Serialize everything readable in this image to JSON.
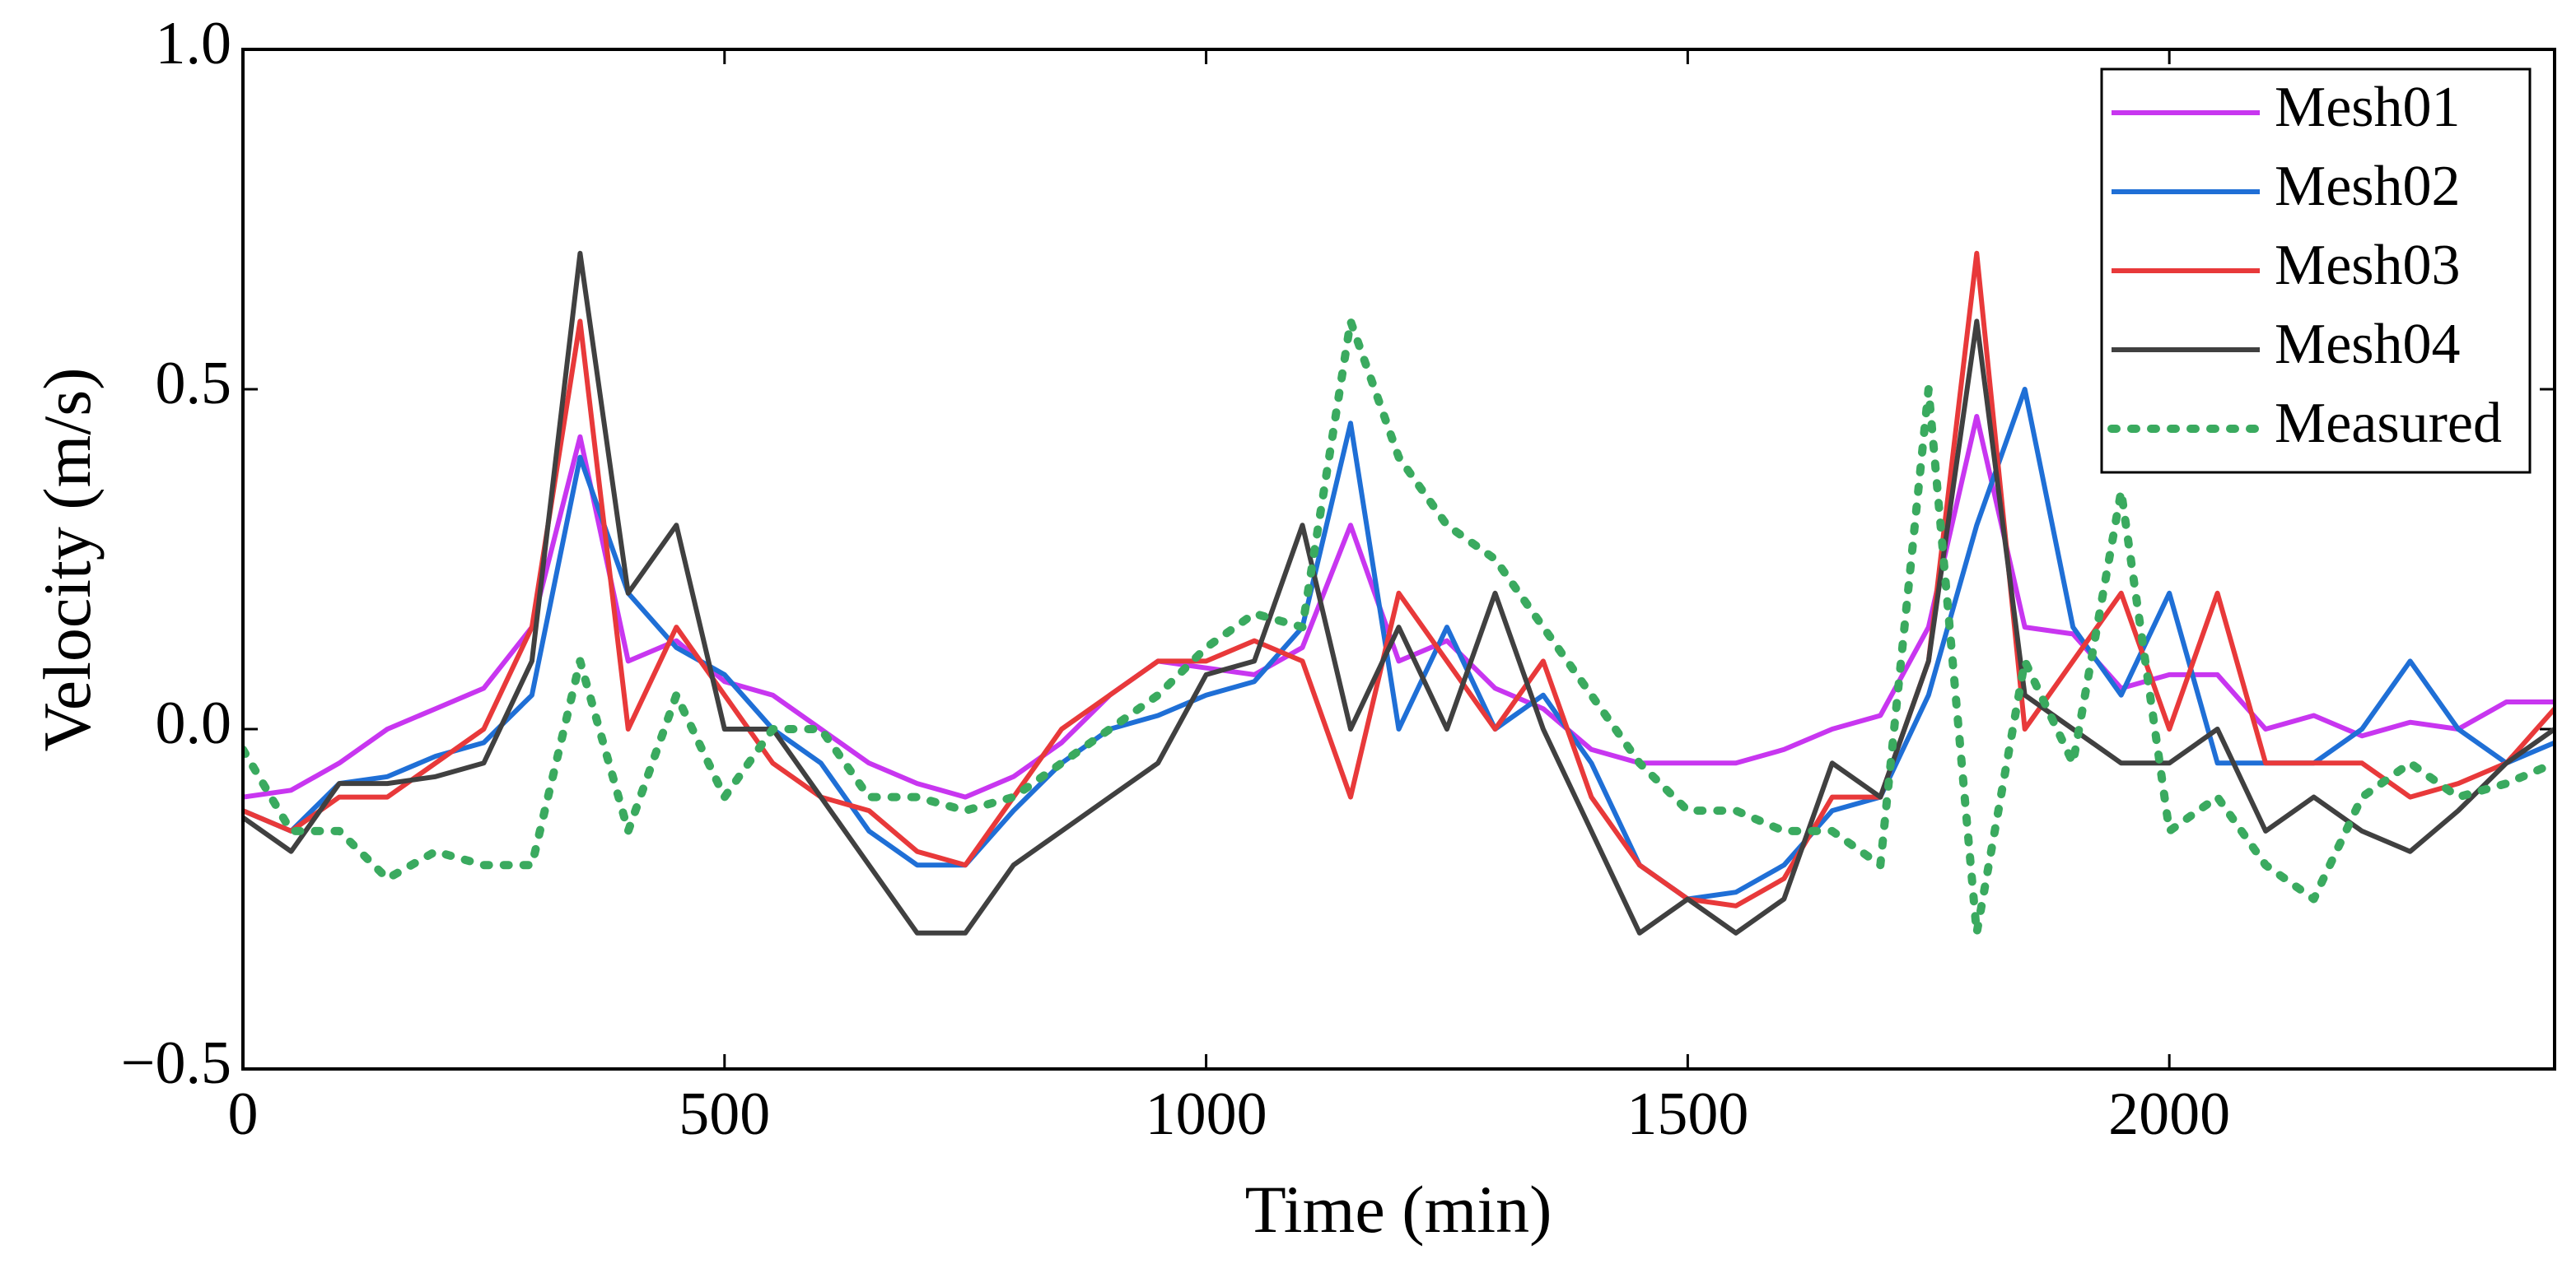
{
  "chart_data": {
    "type": "line",
    "xlabel": "Time (min)",
    "ylabel": "Velocity (m/s)",
    "xlim": [
      0,
      2400
    ],
    "ylim": [
      -0.5,
      1.0
    ],
    "xticks": [
      0,
      500,
      1000,
      1500,
      2000
    ],
    "yticks": [
      {
        "value": -0.5,
        "label": "−0.5"
      },
      {
        "value": 0,
        "label": "0.0"
      },
      {
        "value": 0.5,
        "label": "0.5"
      },
      {
        "value": 1.0,
        "label": "1.0"
      }
    ],
    "legend": "upper right",
    "x": [
      0,
      50,
      100,
      150,
      200,
      250,
      300,
      350,
      400,
      450,
      500,
      550,
      600,
      650,
      700,
      750,
      800,
      850,
      900,
      950,
      1000,
      1050,
      1100,
      1150,
      1200,
      1250,
      1300,
      1350,
      1400,
      1450,
      1500,
      1550,
      1600,
      1650,
      1700,
      1750,
      1800,
      1850,
      1900,
      1950,
      2000,
      2050,
      2100,
      2150,
      2200,
      2250,
      2300,
      2350,
      2400
    ],
    "series": [
      {
        "name": "Mesh01",
        "color": "#c836f0",
        "style": "solid",
        "values": [
          -0.1,
          -0.09,
          -0.05,
          0.0,
          0.03,
          0.06,
          0.15,
          0.43,
          0.1,
          0.13,
          0.07,
          0.05,
          0.0,
          -0.05,
          -0.08,
          -0.1,
          -0.07,
          -0.02,
          0.05,
          0.1,
          0.09,
          0.08,
          0.12,
          0.3,
          0.1,
          0.13,
          0.06,
          0.03,
          -0.03,
          -0.05,
          -0.05,
          -0.05,
          -0.03,
          0.0,
          0.02,
          0.15,
          0.46,
          0.15,
          0.14,
          0.06,
          0.08,
          0.08,
          0.0,
          0.02,
          -0.01,
          0.01,
          0.0,
          0.04,
          0.04
        ]
      },
      {
        "name": "Mesh02",
        "color": "#1f6fd6",
        "style": "solid",
        "values": [
          -0.12,
          -0.15,
          -0.08,
          -0.07,
          -0.04,
          -0.02,
          0.05,
          0.4,
          0.2,
          0.12,
          0.08,
          0.0,
          -0.05,
          -0.15,
          -0.2,
          -0.2,
          -0.12,
          -0.05,
          0.0,
          0.02,
          0.05,
          0.07,
          0.15,
          0.45,
          0.0,
          0.15,
          0.0,
          0.05,
          -0.05,
          -0.2,
          -0.25,
          -0.24,
          -0.2,
          -0.12,
          -0.1,
          0.05,
          0.3,
          0.5,
          0.15,
          0.05,
          0.2,
          -0.05,
          -0.05,
          -0.05,
          0.0,
          0.1,
          0.0,
          -0.05,
          -0.02
        ]
      },
      {
        "name": "Mesh03",
        "color": "#e8393a",
        "style": "solid",
        "values": [
          -0.12,
          -0.15,
          -0.1,
          -0.1,
          -0.05,
          0.0,
          0.15,
          0.6,
          0.0,
          0.15,
          0.05,
          -0.05,
          -0.1,
          -0.12,
          -0.18,
          -0.2,
          -0.1,
          0.0,
          0.05,
          0.1,
          0.1,
          0.13,
          0.1,
          -0.1,
          0.2,
          0.1,
          0.0,
          0.1,
          -0.1,
          -0.2,
          -0.25,
          -0.26,
          -0.22,
          -0.1,
          -0.1,
          0.1,
          0.7,
          0.0,
          0.1,
          0.2,
          0.0,
          0.2,
          -0.05,
          -0.05,
          -0.05,
          -0.1,
          -0.08,
          -0.05,
          0.03
        ]
      },
      {
        "name": "Mesh04",
        "color": "#404040",
        "style": "solid",
        "values": [
          -0.13,
          -0.18,
          -0.08,
          -0.08,
          -0.07,
          -0.05,
          0.1,
          0.7,
          0.2,
          0.3,
          0.0,
          0.0,
          -0.1,
          -0.2,
          -0.3,
          -0.3,
          -0.2,
          -0.15,
          -0.1,
          -0.05,
          0.08,
          0.1,
          0.3,
          0.0,
          0.15,
          0.0,
          0.2,
          0.0,
          -0.15,
          -0.3,
          -0.25,
          -0.3,
          -0.25,
          -0.05,
          -0.1,
          0.1,
          0.6,
          0.05,
          0.0,
          -0.05,
          -0.05,
          0.0,
          -0.15,
          -0.1,
          -0.15,
          -0.18,
          -0.12,
          -0.05,
          0.0
        ]
      },
      {
        "name": "Measured",
        "color": "#3aaa5f",
        "style": "dotted",
        "values": [
          -0.03,
          -0.15,
          -0.15,
          -0.22,
          -0.18,
          -0.2,
          -0.2,
          0.1,
          -0.15,
          0.05,
          -0.1,
          0.0,
          0.0,
          -0.1,
          -0.1,
          -0.12,
          -0.1,
          -0.05,
          0.0,
          0.05,
          0.12,
          0.17,
          0.15,
          0.6,
          0.4,
          0.3,
          0.25,
          0.15,
          0.05,
          -0.05,
          -0.12,
          -0.12,
          -0.15,
          -0.15,
          -0.2,
          0.5,
          -0.3,
          0.1,
          -0.05,
          0.35,
          -0.15,
          -0.1,
          -0.2,
          -0.25,
          -0.1,
          -0.05,
          -0.1,
          -0.08,
          -0.05
        ]
      }
    ]
  }
}
